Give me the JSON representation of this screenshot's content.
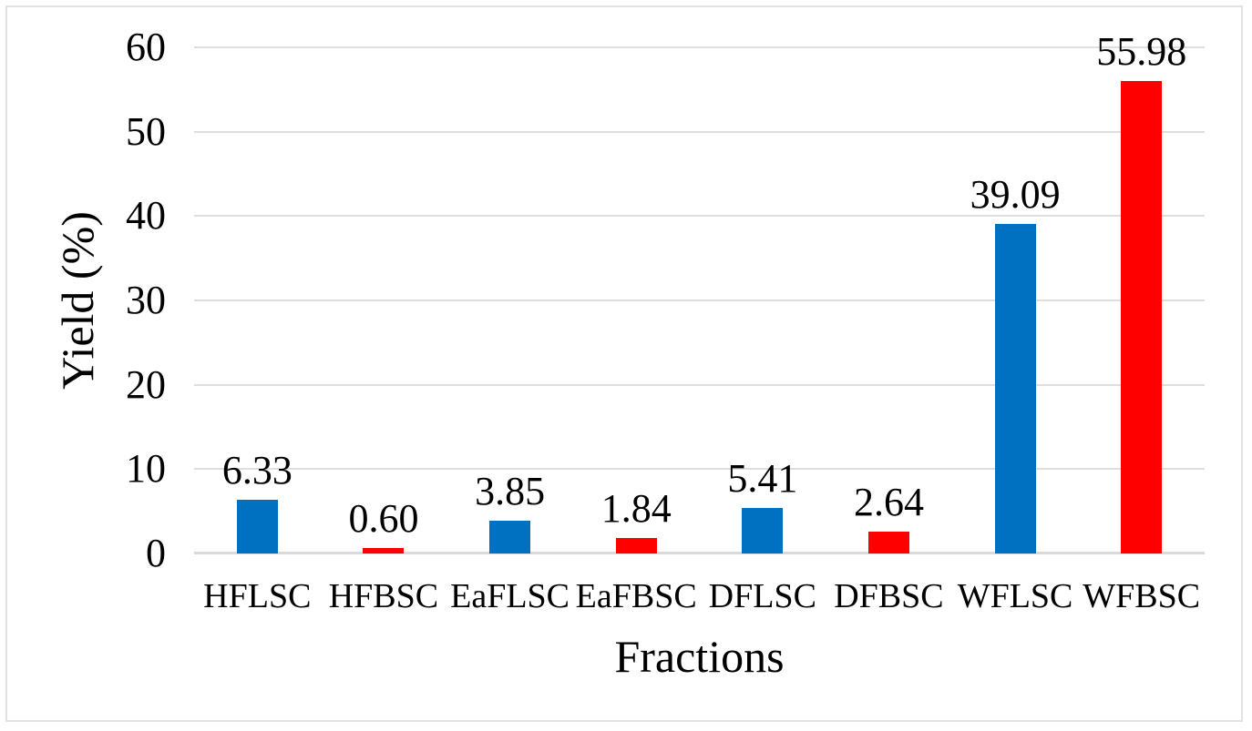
{
  "chart_data": {
    "type": "bar",
    "title": "",
    "xlabel": "Fractions",
    "ylabel": "Yield (%)",
    "categories": [
      "HFLSC",
      "HFBSC",
      "EaFLSC",
      "EaFBSC",
      "DFLSC",
      "DFBSC",
      "WFLSC",
      "WFBSC"
    ],
    "values": [
      6.33,
      0.6,
      3.85,
      1.84,
      5.41,
      2.64,
      39.09,
      55.98
    ],
    "value_labels": [
      "6.33",
      "0.60",
      "3.85",
      "1.84",
      "5.41",
      "2.64",
      "39.09",
      "55.98"
    ],
    "bar_colors": [
      "#0070C0",
      "#FF0000",
      "#0070C0",
      "#FF0000",
      "#0070C0",
      "#FF0000",
      "#0070C0",
      "#FF0000"
    ],
    "ylim": [
      0,
      60
    ],
    "yticks": [
      0,
      10,
      20,
      30,
      40,
      50,
      60
    ],
    "grid": true,
    "legend": null
  },
  "colors": {
    "blue_series": "#0070C0",
    "red_series": "#FF0000",
    "gridline": "#DEDEDE",
    "axis_line": "#D9D9D9",
    "text": "#000000",
    "frame_border": "#E2E2E2"
  }
}
